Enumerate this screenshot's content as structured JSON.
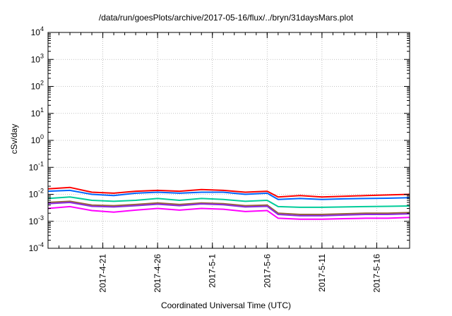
{
  "chart_data": {
    "type": "line",
    "title": "/data/run/goesPlots/archive/2017-05-16/flux/../bryn/31daysMars.plot",
    "xlabel": "Coordinated Universal Time (UTC)",
    "ylabel": "cSv/day",
    "x_scale": "time",
    "y_scale": "log",
    "xlim": [
      "2017-04-16",
      "2017-05-19"
    ],
    "ylim": [
      0.0001,
      10000
    ],
    "grid": true,
    "x_ticks": [
      "2017-4-21",
      "2017-4-26",
      "2017-5-1",
      "2017-5-6",
      "2017-5-11",
      "2017-5-16"
    ],
    "y_ticks": [
      {
        "base": "10",
        "exp": "-4",
        "value": 0.0001
      },
      {
        "base": "10",
        "exp": "-3",
        "value": 0.001
      },
      {
        "base": "10",
        "exp": "-2",
        "value": 0.01
      },
      {
        "base": "10",
        "exp": "-1",
        "value": 0.1
      },
      {
        "base": "10",
        "exp": "0",
        "value": 1
      },
      {
        "base": "10",
        "exp": "1",
        "value": 10
      },
      {
        "base": "10",
        "exp": "2",
        "value": 100
      },
      {
        "base": "10",
        "exp": "3",
        "value": 1000
      },
      {
        "base": "10",
        "exp": "4",
        "value": 10000
      }
    ],
    "series": [
      {
        "color": "#ff0000",
        "x": [
          "2017-04-16",
          "2017-04-18",
          "2017-04-20",
          "2017-04-22",
          "2017-04-24",
          "2017-04-26",
          "2017-04-28",
          "2017-04-30",
          "2017-05-02",
          "2017-05-04",
          "2017-05-06",
          "2017-05-07",
          "2017-05-09",
          "2017-05-11",
          "2017-05-13",
          "2017-05-15",
          "2017-05-17",
          "2017-05-19"
        ],
        "y": [
          0.016,
          0.018,
          0.012,
          0.011,
          0.013,
          0.014,
          0.013,
          0.015,
          0.014,
          0.012,
          0.013,
          0.008,
          0.009,
          0.008,
          0.0085,
          0.009,
          0.0095,
          0.01
        ]
      },
      {
        "color": "#0066ff",
        "x": [
          "2017-04-16",
          "2017-04-18",
          "2017-04-20",
          "2017-04-22",
          "2017-04-24",
          "2017-04-26",
          "2017-04-28",
          "2017-04-30",
          "2017-05-02",
          "2017-05-04",
          "2017-05-06",
          "2017-05-07",
          "2017-05-09",
          "2017-05-11",
          "2017-05-13",
          "2017-05-15",
          "2017-05-17",
          "2017-05-19"
        ],
        "y": [
          0.013,
          0.014,
          0.01,
          0.009,
          0.011,
          0.012,
          0.011,
          0.012,
          0.012,
          0.01,
          0.011,
          0.0065,
          0.007,
          0.0065,
          0.0068,
          0.007,
          0.0072,
          0.0075
        ]
      },
      {
        "color": "#00cc99",
        "x": [
          "2017-04-16",
          "2017-04-18",
          "2017-04-20",
          "2017-04-22",
          "2017-04-24",
          "2017-04-26",
          "2017-04-28",
          "2017-04-30",
          "2017-05-02",
          "2017-05-04",
          "2017-05-06",
          "2017-05-07",
          "2017-05-09",
          "2017-05-11",
          "2017-05-13",
          "2017-05-15",
          "2017-05-17",
          "2017-05-19"
        ],
        "y": [
          0.007,
          0.008,
          0.006,
          0.0055,
          0.006,
          0.007,
          0.006,
          0.007,
          0.0065,
          0.0055,
          0.006,
          0.0035,
          0.0033,
          0.0033,
          0.0034,
          0.0035,
          0.0036,
          0.0037
        ]
      },
      {
        "color": "#996633",
        "x": [
          "2017-04-16",
          "2017-04-18",
          "2017-04-20",
          "2017-04-22",
          "2017-04-24",
          "2017-04-26",
          "2017-04-28",
          "2017-04-30",
          "2017-05-02",
          "2017-05-04",
          "2017-05-06",
          "2017-05-07",
          "2017-05-09",
          "2017-05-11",
          "2017-05-13",
          "2017-05-15",
          "2017-05-17",
          "2017-05-19"
        ],
        "y": [
          0.005,
          0.0055,
          0.004,
          0.0038,
          0.0042,
          0.0048,
          0.0042,
          0.0048,
          0.0045,
          0.0038,
          0.004,
          0.002,
          0.0018,
          0.0018,
          0.0019,
          0.002,
          0.002,
          0.0021
        ]
      },
      {
        "color": "#8a2be2",
        "x": [
          "2017-04-16",
          "2017-04-18",
          "2017-04-20",
          "2017-04-22",
          "2017-04-24",
          "2017-04-26",
          "2017-04-28",
          "2017-04-30",
          "2017-05-02",
          "2017-05-04",
          "2017-05-06",
          "2017-05-07",
          "2017-05-09",
          "2017-05-11",
          "2017-05-13",
          "2017-05-15",
          "2017-05-17",
          "2017-05-19"
        ],
        "y": [
          0.0045,
          0.005,
          0.0036,
          0.0034,
          0.0038,
          0.0043,
          0.0038,
          0.0044,
          0.0041,
          0.0034,
          0.0036,
          0.0018,
          0.0016,
          0.0016,
          0.0017,
          0.0018,
          0.0018,
          0.0019
        ]
      },
      {
        "color": "#ff00ff",
        "x": [
          "2017-04-16",
          "2017-04-18",
          "2017-04-20",
          "2017-04-22",
          "2017-04-24",
          "2017-04-26",
          "2017-04-28",
          "2017-04-30",
          "2017-05-02",
          "2017-05-04",
          "2017-05-06",
          "2017-05-07",
          "2017-05-09",
          "2017-05-11",
          "2017-05-13",
          "2017-05-15",
          "2017-05-17",
          "2017-05-19"
        ],
        "y": [
          0.003,
          0.0035,
          0.0025,
          0.0022,
          0.0026,
          0.003,
          0.0026,
          0.003,
          0.0028,
          0.0023,
          0.0025,
          0.0013,
          0.0012,
          0.0012,
          0.00125,
          0.0013,
          0.0013,
          0.0014
        ]
      }
    ]
  }
}
